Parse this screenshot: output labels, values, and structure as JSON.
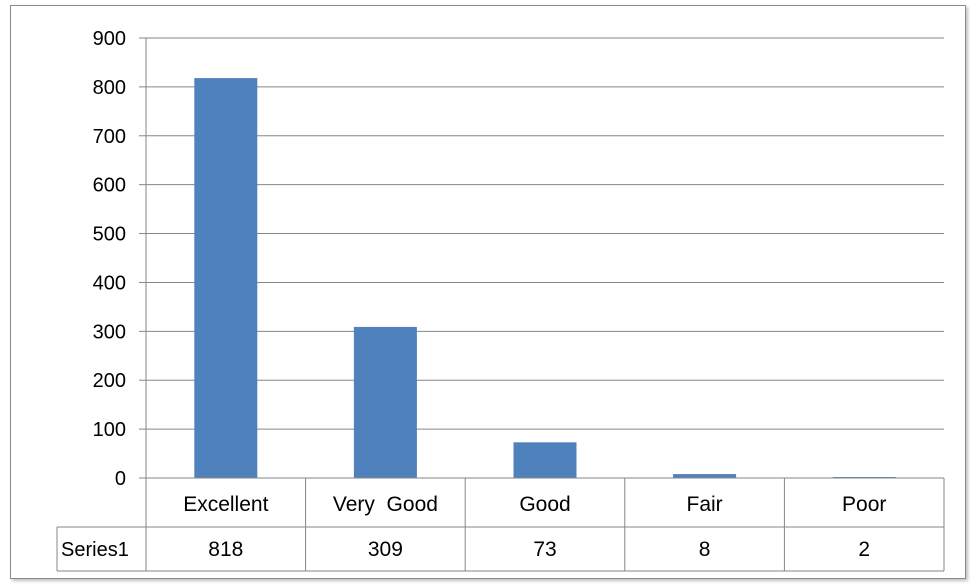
{
  "chart_data": {
    "type": "bar",
    "title": "",
    "xlabel": "",
    "ylabel": "",
    "categories": [
      "Excellent",
      "Very  Good",
      "Good",
      "Fair",
      "Poor"
    ],
    "series": [
      {
        "name": "Series1",
        "values": [
          818,
          309,
          73,
          8,
          2
        ]
      }
    ],
    "ylim": [
      0,
      900
    ],
    "yticks": [
      "0",
      "100",
      "200",
      "300",
      "400",
      "500",
      "600",
      "700",
      "800",
      "900"
    ],
    "grid": true,
    "legend": "none",
    "data_table": true,
    "data_table_values": [
      "818",
      "309",
      "73",
      "8",
      "2"
    ],
    "colors": {
      "bar": "#4F81BD",
      "gridline": "#868686",
      "table_border": "#868686"
    }
  }
}
